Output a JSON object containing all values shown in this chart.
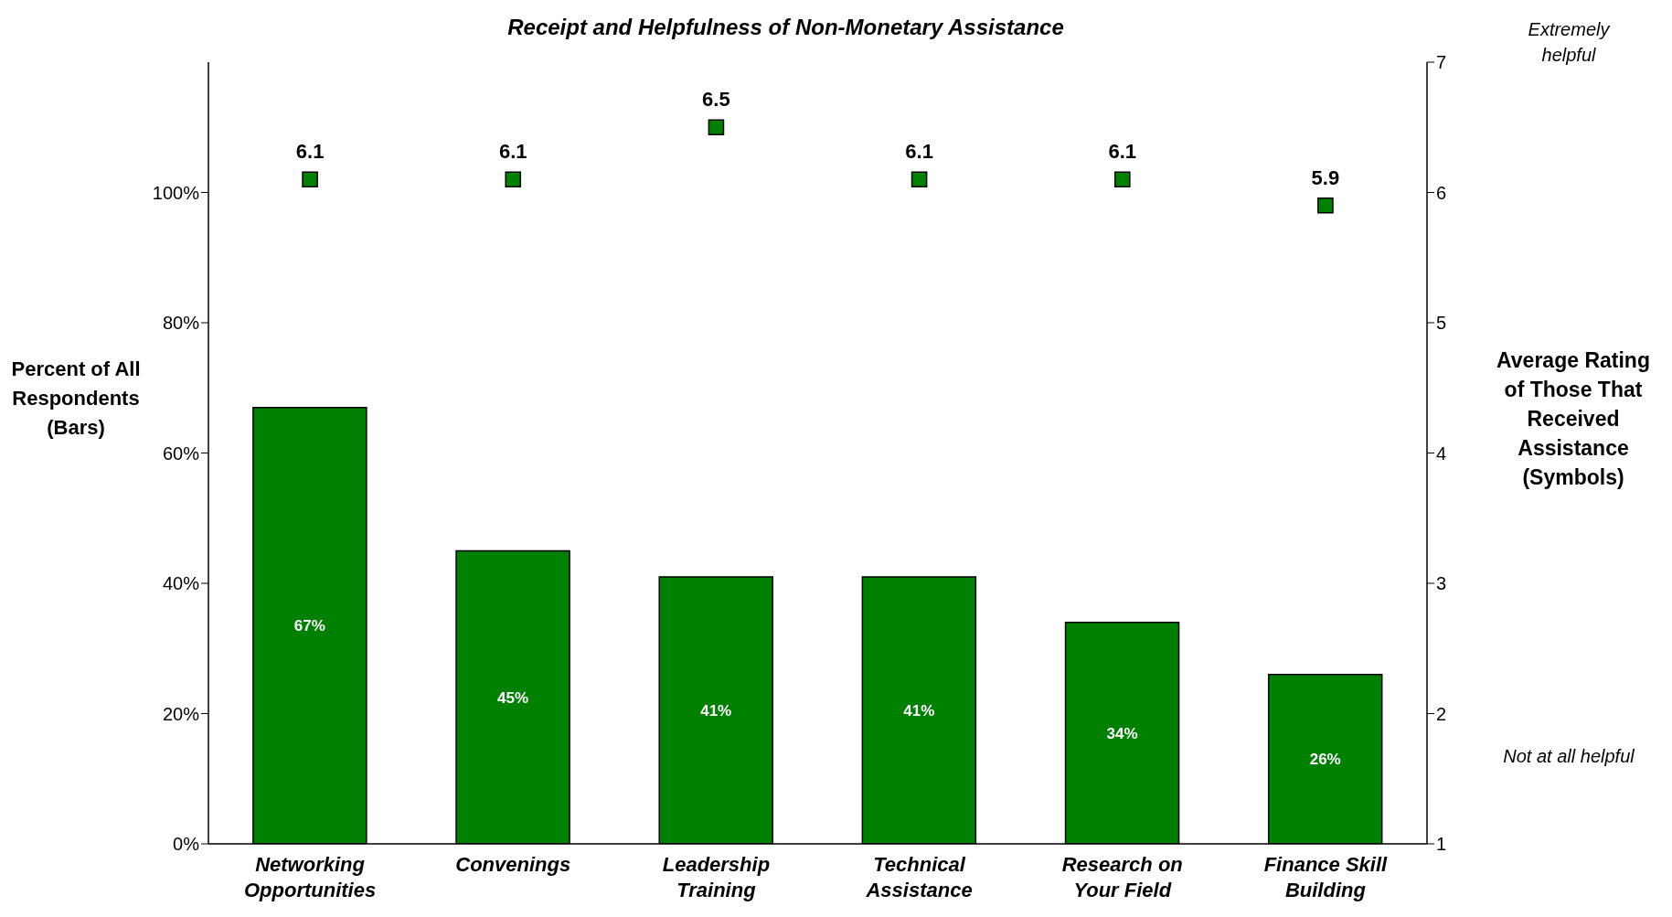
{
  "chart_data": {
    "type": "bar",
    "title": "Receipt and Helpfulness of Non-Monetary Assistance",
    "categories": [
      "Networking Opportunities",
      "Convenings",
      "Leadership Training",
      "Technical Assistance",
      "Research on Your Field",
      "Finance Skill Building"
    ],
    "series": [
      {
        "color": "#008000",
        "values": [
          67,
          45,
          41,
          41,
          34,
          26
        ],
        "value_labels": [
          "67%",
          "45%",
          "41%",
          "41%",
          "34%",
          "26%"
        ]
      },
      {
        "type": "scatter",
        "axis": "y2",
        "color": "#008000",
        "values": [
          6.1,
          6.1,
          6.5,
          6.1,
          6.1,
          5.9
        ],
        "value_labels": [
          "6.1",
          "6.1",
          "6.5",
          "6.1",
          "6.1",
          "5.9"
        ]
      }
    ],
    "ylabel": "Percent of All Respondents (Bars)",
    "y2label": "Average Rating of Those That Received Assistance (Symbols)",
    "ylim": [
      0,
      120
    ],
    "yticks": [
      {
        "value": 0,
        "label": "0%"
      },
      {
        "value": 20,
        "label": "20%"
      },
      {
        "value": 40,
        "label": "40%"
      },
      {
        "value": 60,
        "label": "60%"
      },
      {
        "value": 80,
        "label": "80%"
      },
      {
        "value": 100,
        "label": "100%"
      }
    ],
    "y2lim": [
      1,
      7
    ],
    "y2ticks": [
      1,
      2,
      3,
      4,
      5,
      6,
      7
    ],
    "annotations": [
      "Extremely helpful",
      "Not at all helpful"
    ],
    "marker": "square",
    "grid": false,
    "legend": false
  }
}
